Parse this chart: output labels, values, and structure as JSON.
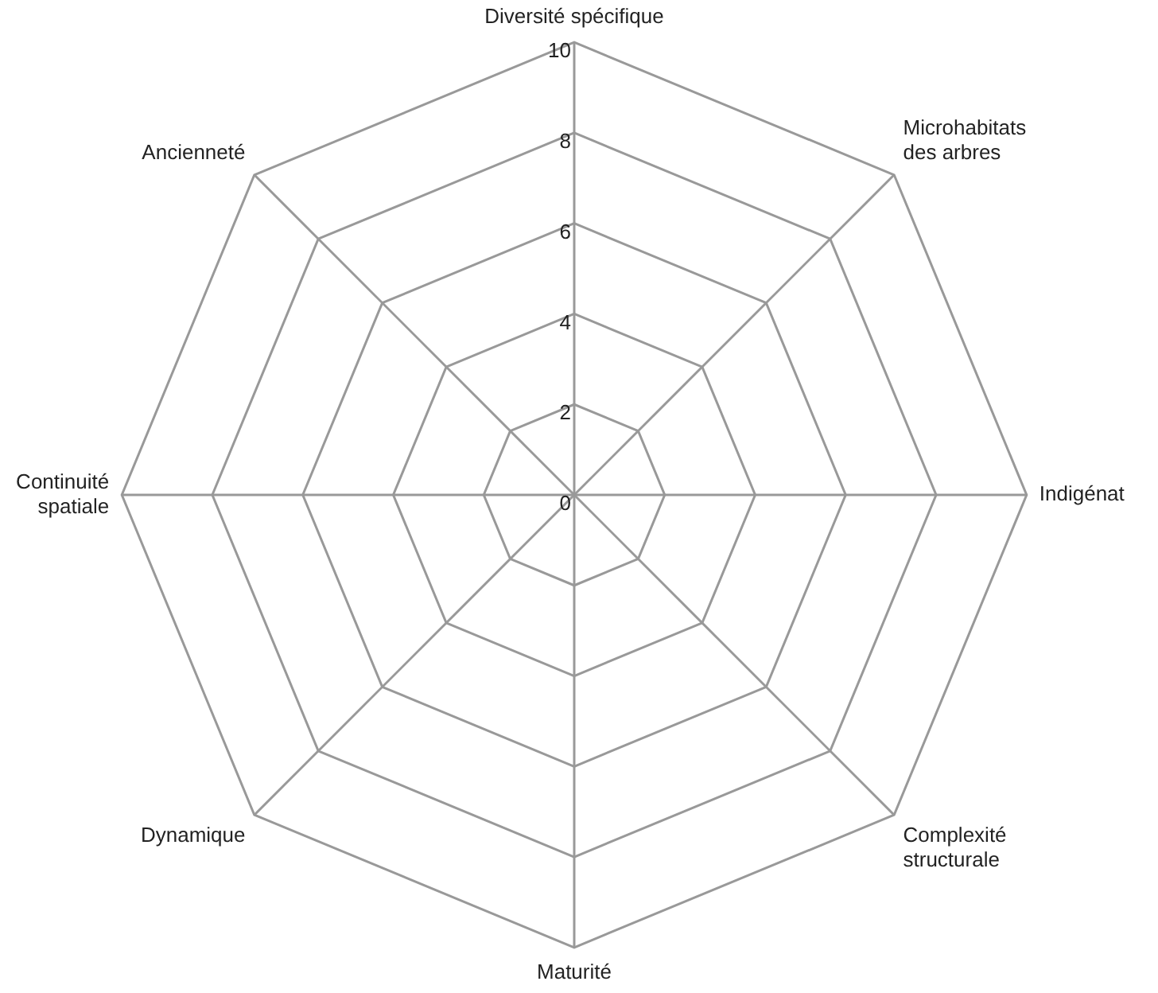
{
  "chart_data": {
    "type": "radar",
    "categories": [
      "Diversité spécifique",
      "Microhabitats\ndes arbres",
      "Indigénat",
      "Complexité\nstructurale",
      "Maturité",
      "Dynamique",
      "Continuité\nspatiale",
      "Ancienneté"
    ],
    "ylim": [
      0,
      10
    ],
    "yticks": [
      0,
      2,
      4,
      6,
      8,
      10
    ],
    "grid": true,
    "legend": false
  }
}
